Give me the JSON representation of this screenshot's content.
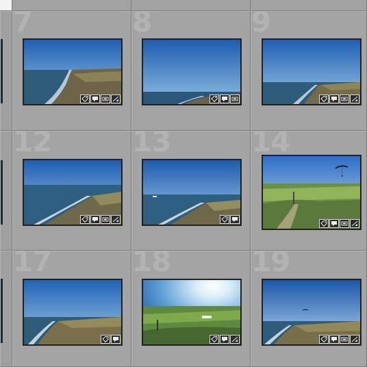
{
  "grid": {
    "cells": [
      {
        "number": "7",
        "photo": "coast",
        "badges": [
          "tag-icon",
          "comment-icon",
          "filmstrip-icon",
          "develop-icon"
        ]
      },
      {
        "number": "8",
        "photo": "sky",
        "badges": [
          "tag-icon",
          "comment-icon",
          "filmstrip-icon"
        ]
      },
      {
        "number": "9",
        "photo": "coast-low",
        "badges": [
          "tag-icon",
          "comment-icon",
          "filmstrip-icon",
          "develop-icon"
        ]
      },
      {
        "number": "12",
        "photo": "beach",
        "badges": [
          "tag-icon",
          "comment-icon",
          "filmstrip-icon",
          "develop-icon"
        ]
      },
      {
        "number": "13",
        "photo": "beach-2",
        "badges": [
          "tag-icon",
          "comment-icon"
        ]
      },
      {
        "number": "14",
        "photo": "paraglider",
        "badges": [
          "tag-icon",
          "comment-icon",
          "filmstrip-icon",
          "develop-icon"
        ]
      },
      {
        "number": "17",
        "photo": "coast-3",
        "badges": [
          "tag-icon",
          "comment-icon"
        ]
      },
      {
        "number": "18",
        "photo": "sun",
        "badges": [
          "tag-icon",
          "comment-icon",
          "develop-icon"
        ]
      },
      {
        "number": "19",
        "photo": "coast-4",
        "badges": [
          "tag-icon",
          "comment-icon",
          "filmstrip-icon",
          "develop-icon"
        ]
      }
    ]
  },
  "colors": {
    "cell_bg": "#a4a4a4",
    "number": "#b3b3b3",
    "badge_bg": "#2b2b2b"
  }
}
